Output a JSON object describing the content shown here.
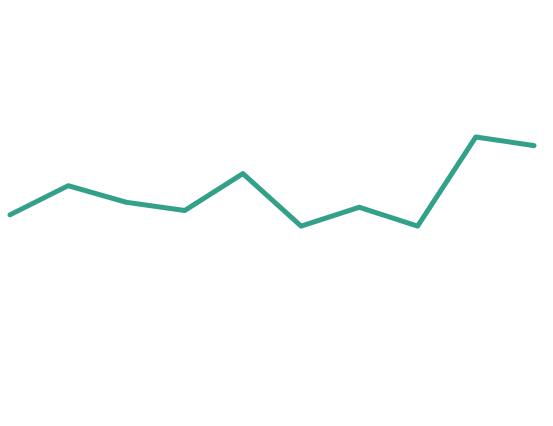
{
  "chart_data": {
    "type": "line",
    "x": [
      1,
      2,
      3,
      4,
      5,
      6,
      7,
      8,
      9,
      10
    ],
    "series": [
      {
        "values": [
          -1.05,
          -0.23,
          -0.7,
          -0.93,
          0.11,
          -1.37,
          -0.84,
          -1.37,
          1.14,
          0.9
        ],
        "color": "#33a18a"
      }
    ],
    "xlim": [
      1,
      10
    ],
    "ylim": [
      -7,
      5
    ],
    "grid": false,
    "legend": "none"
  }
}
